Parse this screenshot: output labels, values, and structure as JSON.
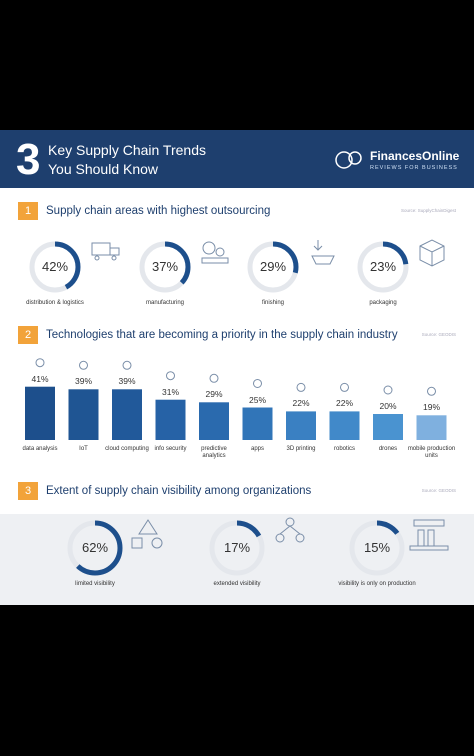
{
  "header": {
    "number": "3",
    "title_line1": "Key Supply Chain Trends",
    "title_line2": "You Should Know",
    "brand": "FinancesOnline",
    "tagline": "REVIEWS FOR BUSINESS"
  },
  "sections": [
    {
      "number": "1",
      "title": "Supply chain areas with highest outsourcing",
      "source": "Source: SupplyChainDigest",
      "items": [
        {
          "label": "distribution & logistics",
          "value": 42,
          "value_label": "42%"
        },
        {
          "label": "manufacturing",
          "value": 37,
          "value_label": "37%"
        },
        {
          "label": "finishing",
          "value": 29,
          "value_label": "29%"
        },
        {
          "label": "packaging",
          "value": 23,
          "value_label": "23%"
        }
      ]
    },
    {
      "number": "2",
      "title": "Technologies that are becoming a priority in the supply chain industry",
      "source": "Source: GEODIS",
      "chart": {
        "type": "bar",
        "categories": [
          "data analysis",
          "IoT",
          "cloud computing",
          "info security",
          "predictive analytics",
          "apps",
          "3D printing",
          "robotics",
          "drones",
          "mobile production units"
        ],
        "values": [
          41,
          39,
          39,
          31,
          29,
          25,
          22,
          22,
          20,
          19
        ],
        "value_labels": [
          "41%",
          "39%",
          "39%",
          "31%",
          "29%",
          "25%",
          "22%",
          "22%",
          "20%",
          "19%"
        ],
        "colors": [
          "#1d4f8c",
          "#1f5593",
          "#21599a",
          "#2662a6",
          "#2a6aae",
          "#3175b8",
          "#3a80c2",
          "#4189c9",
          "#4a93d0",
          "#7fb0df"
        ]
      }
    },
    {
      "number": "3",
      "title": "Extent of supply chain visibility among organizations",
      "source": "Source: GEODIS",
      "items": [
        {
          "label": "limited visibility",
          "value": 62,
          "value_label": "62%"
        },
        {
          "label": "extended visibility",
          "value": 17,
          "value_label": "17%"
        },
        {
          "label": "visibility is only on production",
          "value": 15,
          "value_label": "15%"
        }
      ]
    }
  ]
}
